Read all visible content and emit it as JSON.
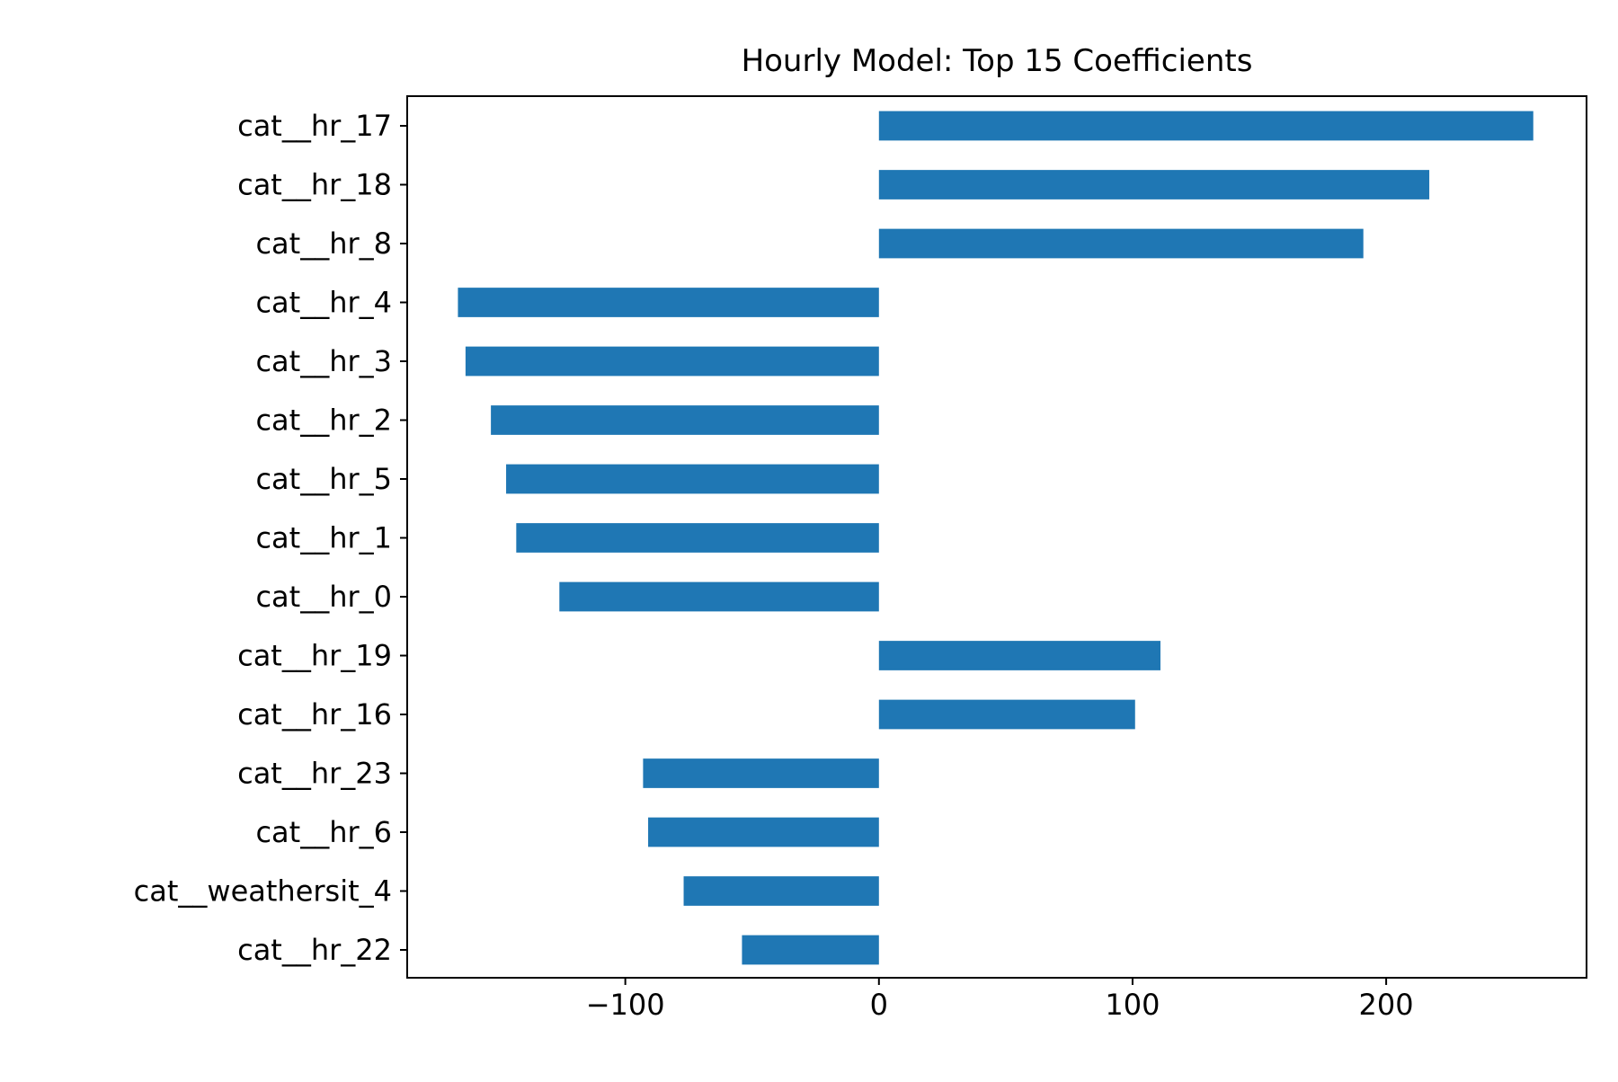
{
  "chart_data": {
    "type": "bar",
    "orientation": "horizontal",
    "title": "Hourly Model: Top 15 Coefficients",
    "xlabel": "",
    "ylabel": "",
    "categories": [
      "cat__hr_17",
      "cat__hr_18",
      "cat__hr_8",
      "cat__hr_4",
      "cat__hr_3",
      "cat__hr_2",
      "cat__hr_5",
      "cat__hr_1",
      "cat__hr_0",
      "cat__hr_19",
      "cat__hr_16",
      "cat__hr_23",
      "cat__hr_6",
      "cat__weathersit_4",
      "cat__hr_22"
    ],
    "values": [
      258,
      217,
      191,
      -166,
      -163,
      -153,
      -147,
      -143,
      -126,
      111,
      101,
      -93,
      -91,
      -77,
      -54
    ],
    "xlim": [
      -186,
      279
    ],
    "xticks": [
      -100,
      0,
      100,
      200
    ],
    "xtick_labels": [
      "−100",
      "0",
      "100",
      "200"
    ],
    "grid": false,
    "legend": "none",
    "bar_color": "#1f77b4"
  }
}
